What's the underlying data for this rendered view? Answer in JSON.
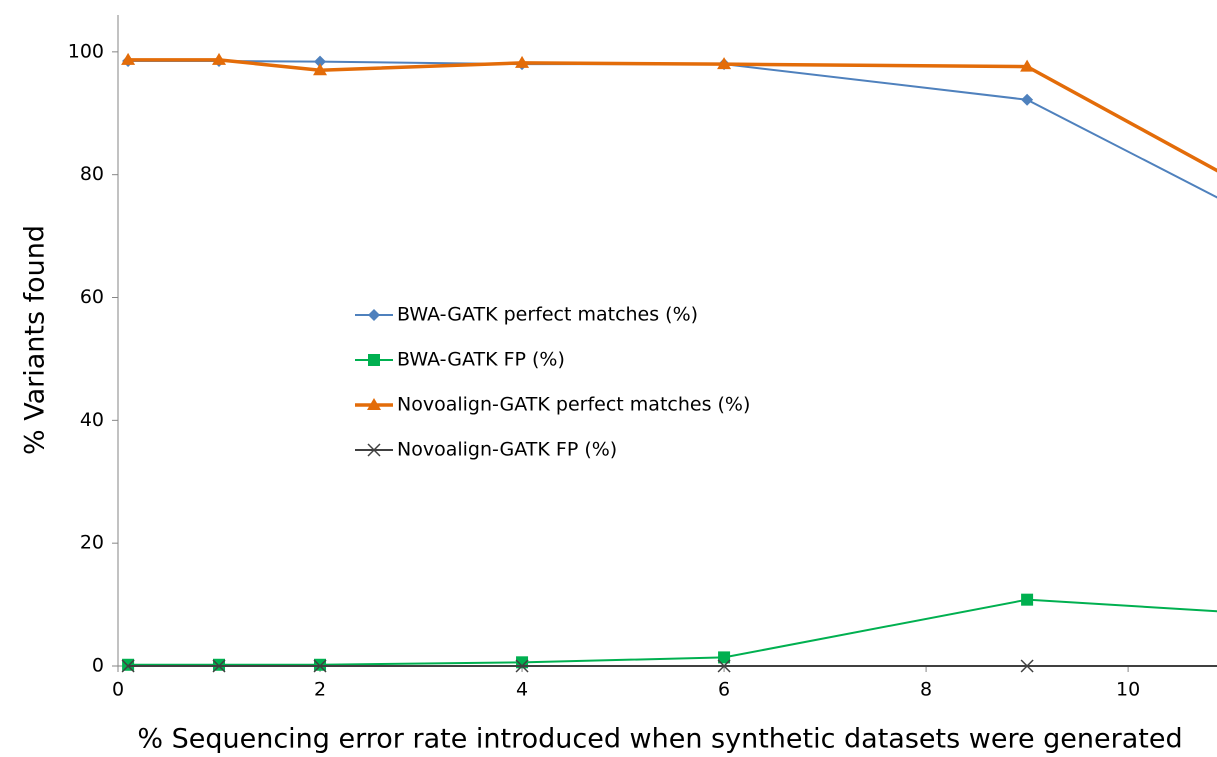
{
  "chart_data": {
    "type": "line",
    "x_label": "% Sequencing error rate introduced when synthetic datasets were generated",
    "y_label": "% Variants found",
    "x": [
      0.1,
      1,
      2,
      4,
      6,
      9,
      11
    ],
    "series": [
      {
        "name": "BWA-GATK perfect matches (%)",
        "color": "#4f81bd",
        "marker": "diamond",
        "values": [
          98.5,
          98.5,
          98.4,
          98.0,
          98.0,
          92.2,
          75.3
        ]
      },
      {
        "name": "BWA-GATK FP (%)",
        "color": "#00b050",
        "marker": "square",
        "values": [
          0.2,
          0.2,
          0.2,
          0.6,
          1.4,
          10.8,
          8.8
        ]
      },
      {
        "name": "Novoalign-GATK perfect matches (%)",
        "color": "#e36c09",
        "marker": "triangle",
        "values": [
          98.7,
          98.7,
          97.0,
          98.2,
          98.0,
          97.6,
          79.6
        ]
      },
      {
        "name": "Novoalign-GATK FP (%)",
        "color": "#404040",
        "marker": "x",
        "values": [
          0,
          0,
          0,
          0,
          0,
          0,
          0
        ]
      }
    ],
    "xlim": [
      0,
      10.88
    ],
    "ylim": [
      0,
      106
    ],
    "xticks": [
      0,
      2,
      4,
      6,
      8,
      10
    ],
    "yticks": [
      0,
      20,
      40,
      60,
      80,
      100
    ]
  }
}
